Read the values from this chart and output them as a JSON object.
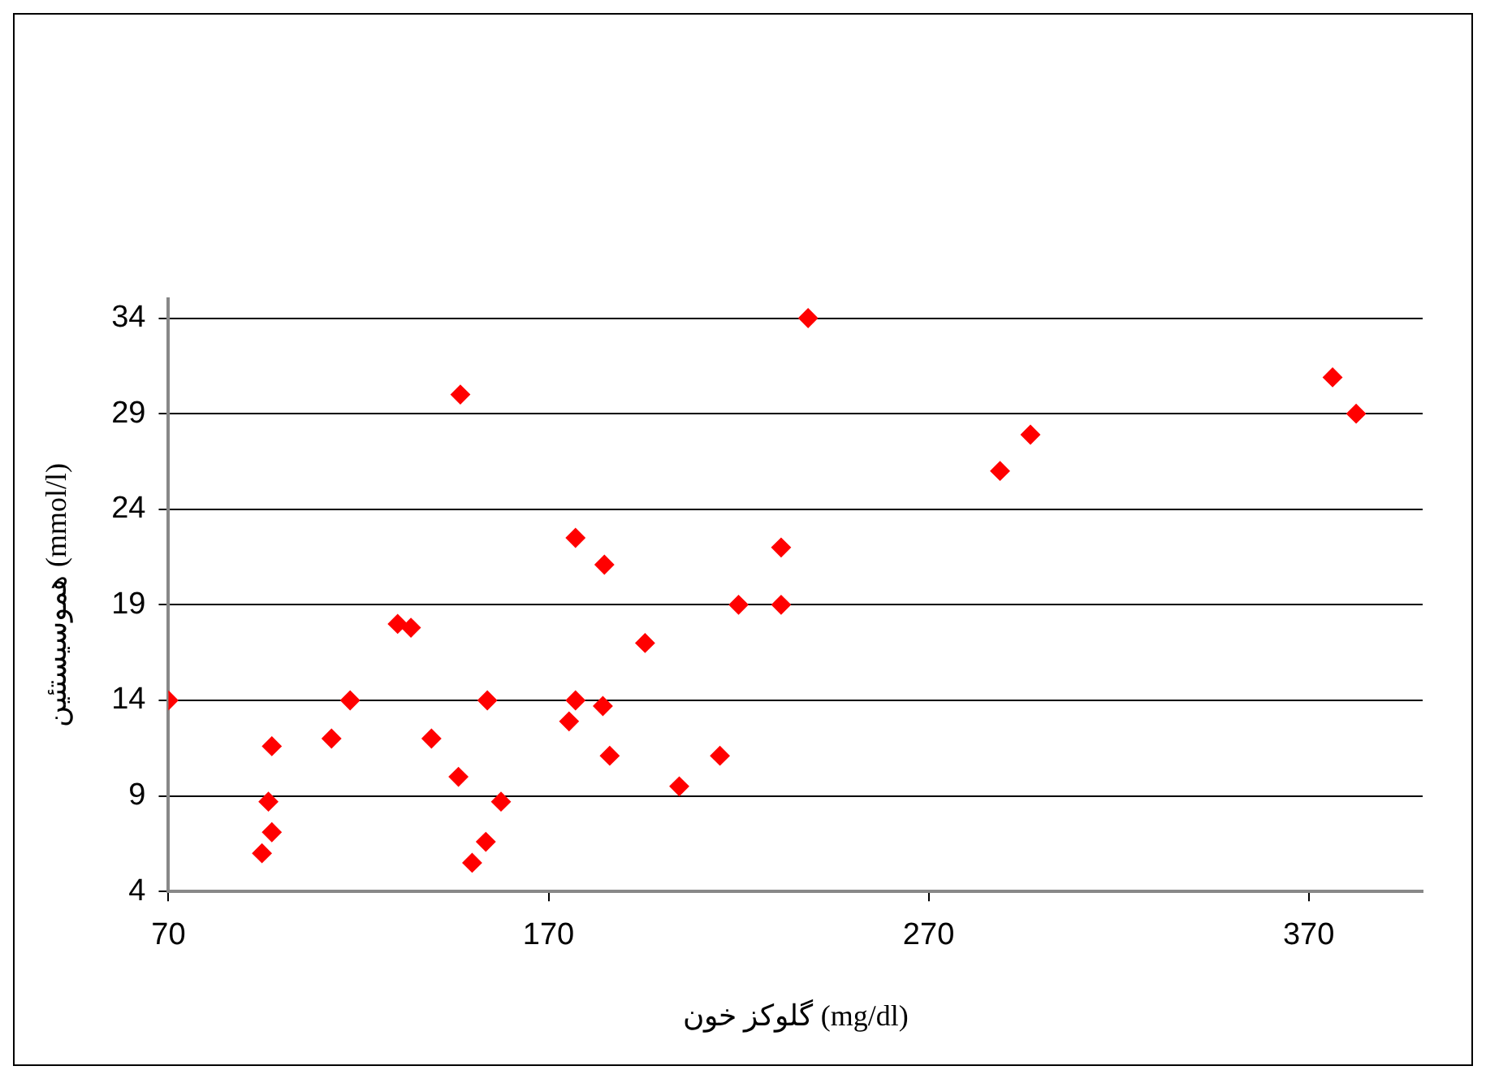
{
  "chart_data": {
    "type": "scatter",
    "xlabel": "گلوکز خون (mg/dl)",
    "ylabel": "هموسیستئین (mmol/l)",
    "x": [
      70,
      94.6,
      96.3,
      97.2,
      97.2,
      112.9,
      117.8,
      130.3,
      133.8,
      139.2,
      146.3,
      146.8,
      149.9,
      153.5,
      153.9,
      157.5,
      175.4,
      177.1,
      177.1,
      184.3,
      184.7,
      186.1,
      195.4,
      204.4,
      215.1,
      220,
      231.2,
      231.2,
      238.3,
      288.8,
      296.8,
      376.3,
      382.5
    ],
    "series": [
      {
        "color": "#ff0000",
        "values": [
          14,
          6,
          8.7,
          11.6,
          7.1,
          12,
          14,
          18,
          17.8,
          12,
          10,
          30,
          5.5,
          6.6,
          14,
          8.7,
          12.9,
          22.5,
          14,
          13.7,
          21.1,
          11.1,
          17,
          9.5,
          11.1,
          19,
          22,
          19,
          34,
          26,
          27.9,
          30.9,
          29
        ]
      }
    ],
    "xlim": [
      70,
      400
    ],
    "xticks": [
      70,
      170,
      270,
      370
    ],
    "ylim": [
      4,
      35
    ],
    "yticks": [
      4,
      9,
      14,
      19,
      24,
      29,
      34
    ],
    "grid": "y",
    "marker": "diamond",
    "legend": false
  }
}
